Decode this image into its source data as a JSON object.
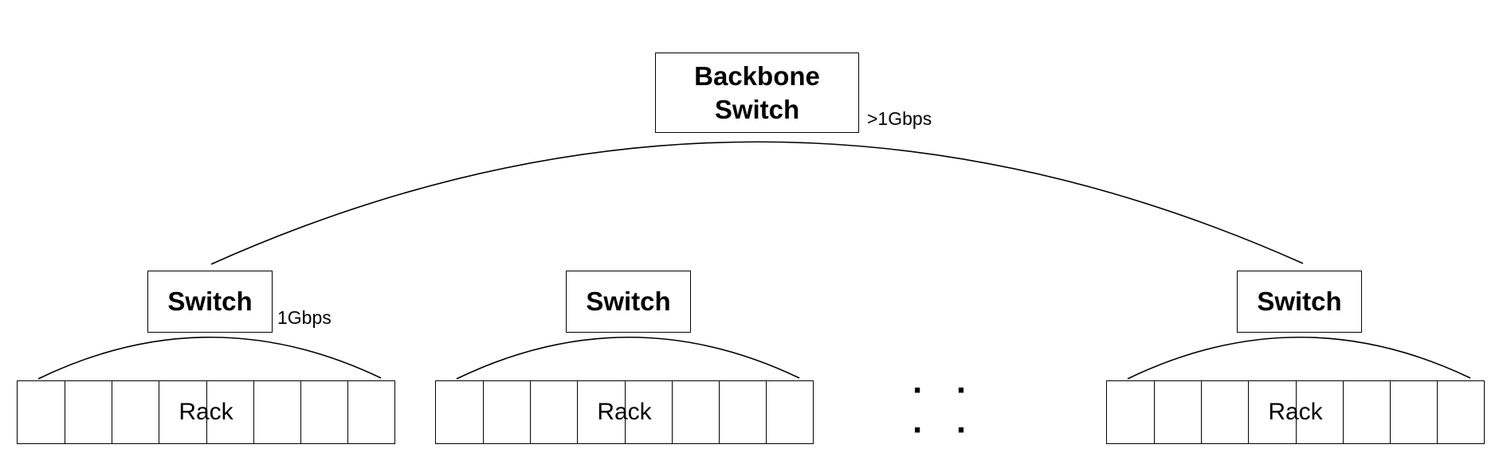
{
  "backbone": {
    "line1": "Backbone",
    "line2": "Switch",
    "speed": ">1Gbps"
  },
  "switches": [
    {
      "label": "Switch",
      "speed": "1Gbps"
    },
    {
      "label": "Switch"
    },
    {
      "label": "Switch"
    }
  ],
  "racks": [
    {
      "label": "Rack",
      "cells": 8
    },
    {
      "label": "Rack",
      "cells": 8
    },
    {
      "label": "Rack",
      "cells": 8
    }
  ],
  "ellipsis": "· · · ·",
  "colors": {
    "stroke": "#000000",
    "background": "#ffffff"
  }
}
